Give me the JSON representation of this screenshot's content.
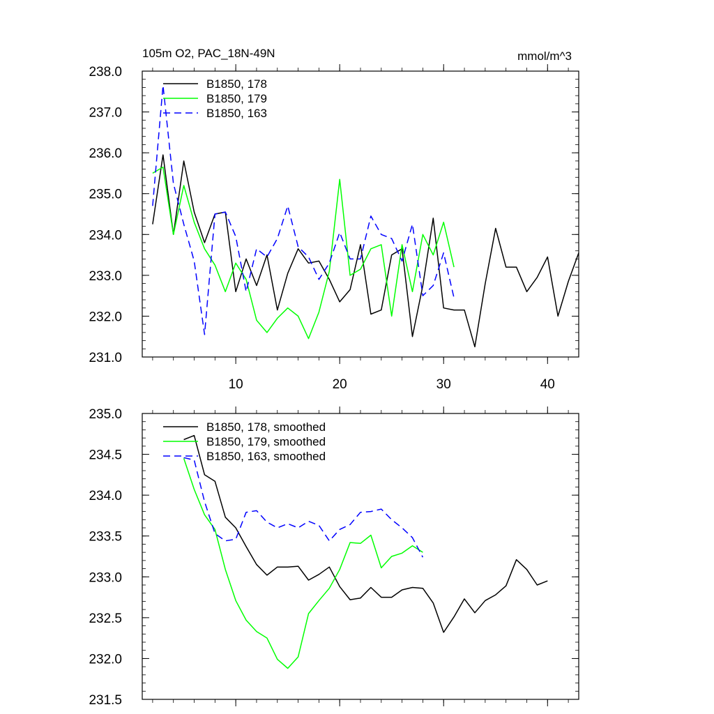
{
  "chart_data": [
    {
      "type": "line",
      "title": "105m O2, PAC_18N-49N",
      "units": "mmol/m^3",
      "xlim": [
        1,
        43
      ],
      "ylim": [
        231.0,
        238.0
      ],
      "yticks": [
        "231.0",
        "232.0",
        "233.0",
        "234.0",
        "235.0",
        "236.0",
        "237.0",
        "238.0"
      ],
      "xticks": [
        "10",
        "20",
        "30",
        "40"
      ],
      "legend_position": "top-left",
      "series": [
        {
          "name": "B1850, 178",
          "color": "#000000",
          "dash": "solid",
          "x": [
            2,
            3,
            4,
            5,
            6,
            7,
            8,
            9,
            10,
            11,
            12,
            13,
            14,
            15,
            16,
            17,
            18,
            19,
            20,
            21,
            22,
            23,
            24,
            25,
            26,
            27,
            28,
            29,
            30,
            31,
            32,
            33,
            34,
            35,
            36,
            37,
            38,
            39,
            40,
            41,
            42,
            43
          ],
          "values": [
            234.25,
            235.95,
            234.0,
            235.8,
            234.55,
            233.8,
            234.5,
            234.55,
            232.6,
            233.4,
            232.75,
            233.5,
            232.15,
            233.05,
            233.65,
            233.3,
            233.35,
            232.9,
            232.35,
            232.65,
            233.75,
            232.05,
            232.15,
            233.5,
            233.65,
            231.5,
            232.75,
            234.4,
            232.2,
            232.15,
            232.15,
            231.25,
            232.8,
            234.15,
            233.2,
            233.2,
            232.6,
            232.95,
            233.45,
            232.0,
            232.85,
            233.55
          ]
        },
        {
          "name": "B1850, 179",
          "color": "#00ff00",
          "dash": "solid",
          "x": [
            2,
            3,
            4,
            5,
            6,
            7,
            8,
            9,
            10,
            11,
            12,
            13,
            14,
            15,
            16,
            17,
            18,
            19,
            20,
            21,
            22,
            23,
            24,
            25,
            26,
            27,
            28,
            29,
            30,
            31
          ],
          "values": [
            235.5,
            235.65,
            234.0,
            235.2,
            234.3,
            233.65,
            233.25,
            232.6,
            233.3,
            232.9,
            231.9,
            231.6,
            231.95,
            232.2,
            232.0,
            231.45,
            232.1,
            233.1,
            235.35,
            233.0,
            233.15,
            233.65,
            233.75,
            232.0,
            233.75,
            232.6,
            234.0,
            233.5,
            234.3,
            233.2
          ]
        },
        {
          "name": "B1850, 163",
          "color": "#0000ff",
          "dash": "dashed",
          "x": [
            2,
            3,
            4,
            5,
            6,
            7,
            8,
            9,
            10,
            11,
            12,
            13,
            14,
            15,
            16,
            17,
            18,
            19,
            20,
            21,
            22,
            23,
            24,
            25,
            26,
            27,
            28,
            29,
            30,
            31
          ],
          "values": [
            234.7,
            237.65,
            235.25,
            234.25,
            233.35,
            231.55,
            234.5,
            234.55,
            233.95,
            232.6,
            233.65,
            233.45,
            233.9,
            234.7,
            233.7,
            233.45,
            232.9,
            233.3,
            234.05,
            233.4,
            233.4,
            234.45,
            234.0,
            233.9,
            233.35,
            234.25,
            232.5,
            232.75,
            233.55,
            232.45
          ]
        }
      ]
    },
    {
      "type": "line",
      "title": "",
      "xlim": [
        1,
        43
      ],
      "ylim": [
        231.5,
        235.0
      ],
      "yticks": [
        "231.5",
        "232.0",
        "232.5",
        "233.0",
        "233.5",
        "234.0",
        "234.5",
        "235.0"
      ],
      "xticks": [
        "",
        "",
        "",
        ""
      ],
      "legend_position": "top-left",
      "series": [
        {
          "name": "B1850, 178, smoothed",
          "color": "#000000",
          "dash": "solid",
          "x": [
            5,
            6,
            7,
            8,
            9,
            10,
            11,
            12,
            13,
            14,
            15,
            16,
            17,
            18,
            19,
            20,
            21,
            22,
            23,
            24,
            25,
            26,
            27,
            28,
            29,
            30,
            31,
            32,
            33,
            34,
            35,
            36,
            37,
            38,
            39,
            40
          ],
          "values": [
            234.68,
            234.73,
            234.25,
            234.17,
            233.73,
            233.6,
            233.37,
            233.15,
            233.02,
            233.12,
            233.12,
            233.13,
            232.96,
            233.03,
            233.12,
            232.88,
            232.72,
            232.74,
            232.87,
            232.75,
            232.75,
            232.84,
            232.87,
            232.86,
            232.68,
            232.32,
            232.51,
            232.73,
            232.56,
            232.71,
            232.78,
            232.89,
            233.21,
            233.09,
            232.9,
            232.95
          ]
        },
        {
          "name": "B1850, 179, smoothed",
          "color": "#00ff00",
          "dash": "solid",
          "x": [
            5,
            6,
            7,
            8,
            9,
            10,
            11,
            12,
            13,
            14,
            15,
            16,
            17,
            18,
            19,
            20,
            21,
            22,
            23,
            24,
            25,
            26,
            27,
            28
          ],
          "values": [
            234.45,
            234.07,
            233.76,
            233.58,
            233.09,
            232.71,
            232.47,
            232.33,
            232.25,
            231.99,
            231.88,
            232.02,
            232.55,
            232.71,
            232.86,
            233.09,
            233.42,
            233.41,
            233.51,
            233.11,
            233.25,
            233.29,
            233.38,
            233.3
          ]
        },
        {
          "name": "B1850, 163, smoothed",
          "color": "#0000ff",
          "dash": "dashed",
          "x": [
            5,
            6,
            7,
            8,
            9,
            10,
            11,
            12,
            13,
            14,
            15,
            16,
            17,
            18,
            19,
            20,
            21,
            22,
            23,
            24,
            25,
            26,
            27,
            28
          ],
          "values": [
            234.46,
            234.43,
            233.92,
            233.53,
            233.44,
            233.46,
            233.79,
            233.81,
            233.67,
            233.6,
            233.65,
            233.6,
            233.68,
            233.63,
            233.44,
            233.58,
            233.64,
            233.79,
            233.8,
            233.83,
            233.7,
            233.6,
            233.48,
            233.24
          ]
        }
      ]
    }
  ]
}
